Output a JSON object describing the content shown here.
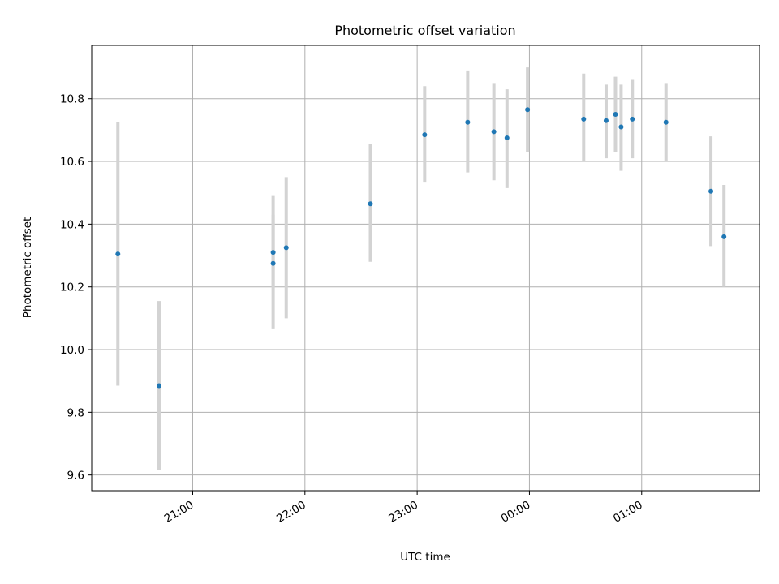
{
  "chart_data": {
    "type": "scatter",
    "title": "Photometric offset variation",
    "xlabel": "UTC time",
    "ylabel": "Photometric offset",
    "x_axis": {
      "kind": "time",
      "range": [
        "20:06",
        "02:03"
      ],
      "ticks": [
        "21:00",
        "22:00",
        "23:00",
        "00:00",
        "01:00"
      ]
    },
    "ylim": [
      9.55,
      10.97
    ],
    "y_ticks": [
      9.6,
      9.8,
      10.0,
      10.2,
      10.4,
      10.6,
      10.8
    ],
    "grid": true,
    "colors": {
      "marker": "#1f77b4",
      "errorbar": "#d3d3d3",
      "grid": "#b0b0b0"
    },
    "series": [
      {
        "points": [
          {
            "time": "20:20",
            "value": 10.305,
            "low": 9.885,
            "high": 10.725
          },
          {
            "time": "20:42",
            "value": 9.885,
            "low": 9.615,
            "high": 10.155
          },
          {
            "time": "21:43",
            "value": 10.31,
            "low": 10.2,
            "high": 10.43
          },
          {
            "time": "21:43",
            "value": 10.275,
            "low": 10.065,
            "high": 10.49
          },
          {
            "time": "21:50",
            "value": 10.325,
            "low": 10.1,
            "high": 10.55
          },
          {
            "time": "22:35",
            "value": 10.465,
            "low": 10.28,
            "high": 10.655
          },
          {
            "time": "23:04",
            "value": 10.685,
            "low": 10.535,
            "high": 10.84
          },
          {
            "time": "23:27",
            "value": 10.725,
            "low": 10.565,
            "high": 10.89
          },
          {
            "time": "23:41",
            "value": 10.695,
            "low": 10.54,
            "high": 10.85
          },
          {
            "time": "23:48",
            "value": 10.675,
            "low": 10.515,
            "high": 10.83
          },
          {
            "time": "23:59",
            "value": 10.765,
            "low": 10.63,
            "high": 10.9
          },
          {
            "time": "00:29",
            "value": 10.735,
            "low": 10.6,
            "high": 10.88
          },
          {
            "time": "00:41",
            "value": 10.73,
            "low": 10.61,
            "high": 10.845
          },
          {
            "time": "00:46",
            "value": 10.75,
            "low": 10.63,
            "high": 10.87
          },
          {
            "time": "00:49",
            "value": 10.71,
            "low": 10.57,
            "high": 10.845
          },
          {
            "time": "00:55",
            "value": 10.735,
            "low": 10.61,
            "high": 10.86
          },
          {
            "time": "01:13",
            "value": 10.725,
            "low": 10.6,
            "high": 10.85
          },
          {
            "time": "01:37",
            "value": 10.505,
            "low": 10.33,
            "high": 10.68
          },
          {
            "time": "01:44",
            "value": 10.36,
            "low": 10.2,
            "high": 10.525
          }
        ]
      }
    ]
  }
}
